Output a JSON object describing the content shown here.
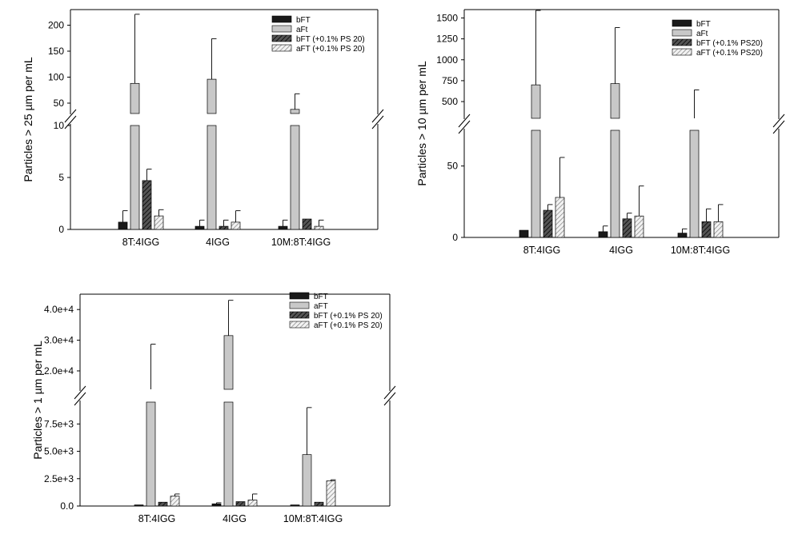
{
  "chart_data": [
    {
      "type": "bar",
      "ylabel": "Particles > 25 µm per mL",
      "categories": [
        "8T:4IGG",
        "4IGG",
        "10M:8T:4IGG"
      ],
      "lower_ticks": [
        "0",
        "5",
        "10"
      ],
      "upper_ticks": [
        "50",
        "100",
        "150",
        "200"
      ],
      "ylim_lower": [
        0,
        10
      ],
      "ylim_upper": [
        30,
        230
      ],
      "series": [
        {
          "name": "bFT",
          "values": [
            0.7,
            0.3,
            0.3
          ],
          "errors": [
            1.1,
            0.6,
            0.6
          ]
        },
        {
          "name": "aFt",
          "values": [
            88,
            96,
            38
          ],
          "errors": [
            133,
            78,
            30
          ]
        },
        {
          "name": "bFT (+0.1% PS 20)",
          "values": [
            4.7,
            0.3,
            1.0
          ],
          "errors": [
            1.1,
            0.6,
            0
          ]
        },
        {
          "name": "aFT (+0.1% PS 20)",
          "values": [
            1.3,
            0.7,
            0.3
          ],
          "errors": [
            0.6,
            1.1,
            0.6
          ]
        }
      ]
    },
    {
      "type": "bar",
      "ylabel": "Particles > 10 µm per mL",
      "categories": [
        "8T:4IGG",
        "4IGG",
        "10M:8T:4IGG"
      ],
      "lower_ticks": [
        "0",
        "50"
      ],
      "upper_ticks": [
        "500",
        "750",
        "1000",
        "1250",
        "1500"
      ],
      "ylim_lower": [
        0,
        75
      ],
      "ylim_upper": [
        300,
        1600
      ],
      "series": [
        {
          "name": "bFT",
          "values": [
            5,
            4,
            3
          ],
          "errors": [
            0,
            4,
            3
          ]
        },
        {
          "name": "aFt",
          "values": [
            700,
            715,
            300
          ],
          "errors": [
            890,
            670,
            340
          ]
        },
        {
          "name": "bFT (+0.1% PS20)",
          "values": [
            19,
            13,
            11
          ],
          "errors": [
            4,
            4,
            9
          ]
        },
        {
          "name": "aFT (+0.1% PS20)",
          "values": [
            28,
            15,
            11
          ],
          "errors": [
            28,
            21,
            12
          ]
        }
      ]
    },
    {
      "type": "bar",
      "ylabel": "Particles > 1 µm per mL",
      "categories": [
        "8T:4IGG",
        "4IGG",
        "10M:8T:4IGG"
      ],
      "lower_ticks": [
        "0.0",
        "2.5e+3",
        "5.0e+3",
        "7.5e+3"
      ],
      "upper_ticks": [
        "2.0e+4",
        "3.0e+4",
        "4.0e+4"
      ],
      "ylim_lower": [
        0,
        9500
      ],
      "ylim_upper": [
        14000,
        45000
      ],
      "series": [
        {
          "name": "bFT",
          "values": [
            100,
            200,
            100
          ],
          "errors": [
            0,
            100,
            0
          ]
        },
        {
          "name": "aFT",
          "values": [
            14000,
            31500,
            4700
          ],
          "errors": [
            14700,
            11500,
            4300
          ]
        },
        {
          "name": "bFT (+0.1% PS 20)",
          "values": [
            350,
            400,
            350
          ],
          "errors": [
            0,
            0,
            0
          ]
        },
        {
          "name": "aFT (+0.1% PS 20)",
          "values": [
            900,
            550,
            2300
          ],
          "errors": [
            200,
            550,
            100
          ]
        }
      ]
    }
  ],
  "colors": {
    "series": [
      "#1a1a1a",
      "#c8c8c8",
      "#3a3a3a",
      "#d9d9d9"
    ]
  }
}
